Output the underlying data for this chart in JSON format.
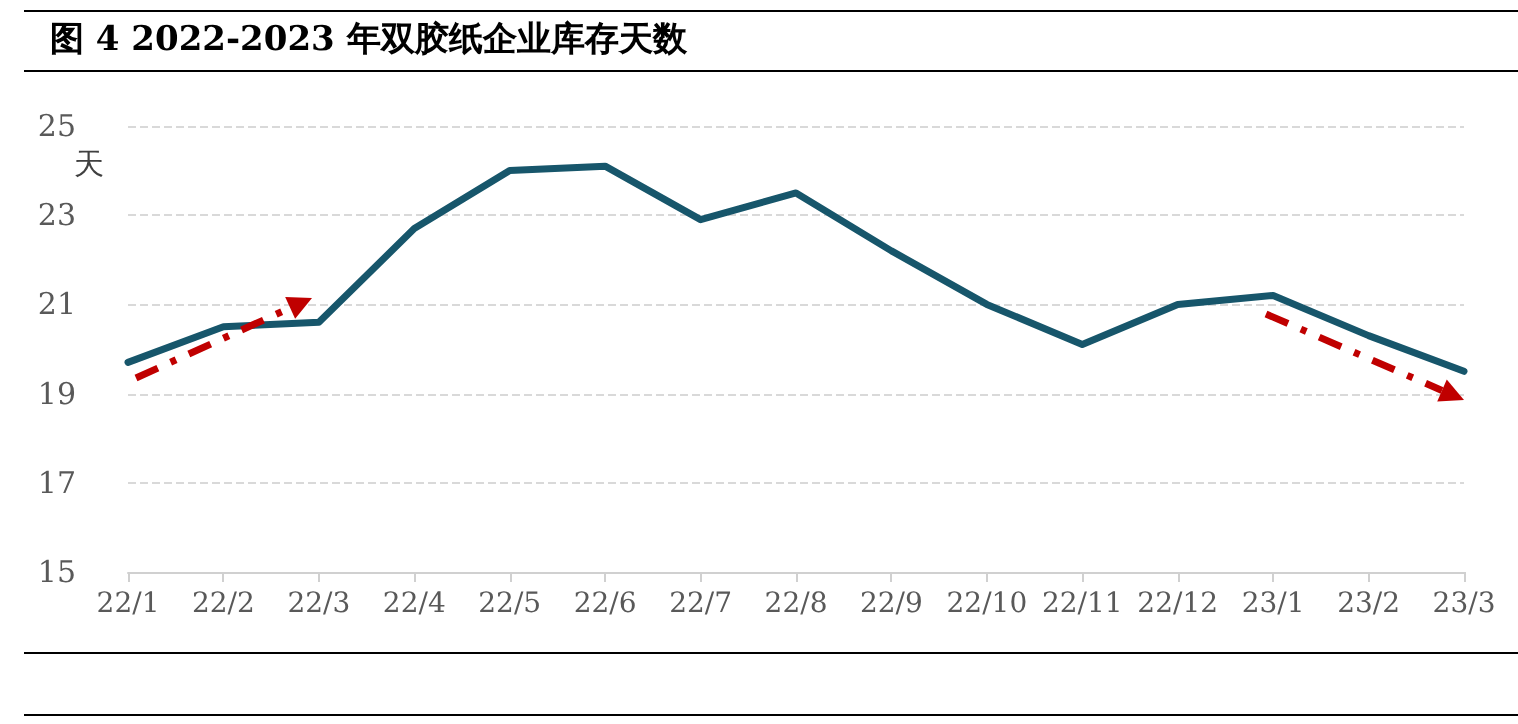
{
  "chart_data": {
    "type": "line",
    "title": "图 4 2022-2023 年双胶纸企业库存天数",
    "ylabel": "天",
    "categories": [
      "22/1",
      "22/2",
      "22/3",
      "22/4",
      "22/5",
      "22/6",
      "22/7",
      "22/8",
      "22/9",
      "22/10",
      "22/11",
      "22/12",
      "23/1",
      "23/2",
      "23/3"
    ],
    "series": [
      {
        "color": "#17566b",
        "values": [
          19.7,
          20.5,
          20.6,
          22.7,
          24.0,
          24.1,
          22.9,
          23.5,
          22.2,
          21.0,
          20.1,
          21.0,
          21.2,
          20.3,
          19.5
        ]
      }
    ],
    "ylim": [
      15,
      25
    ],
    "yticks": [
      15,
      17,
      19,
      21,
      23,
      25
    ],
    "grid": "y",
    "marker": "none",
    "line_style": "solid"
  }
}
